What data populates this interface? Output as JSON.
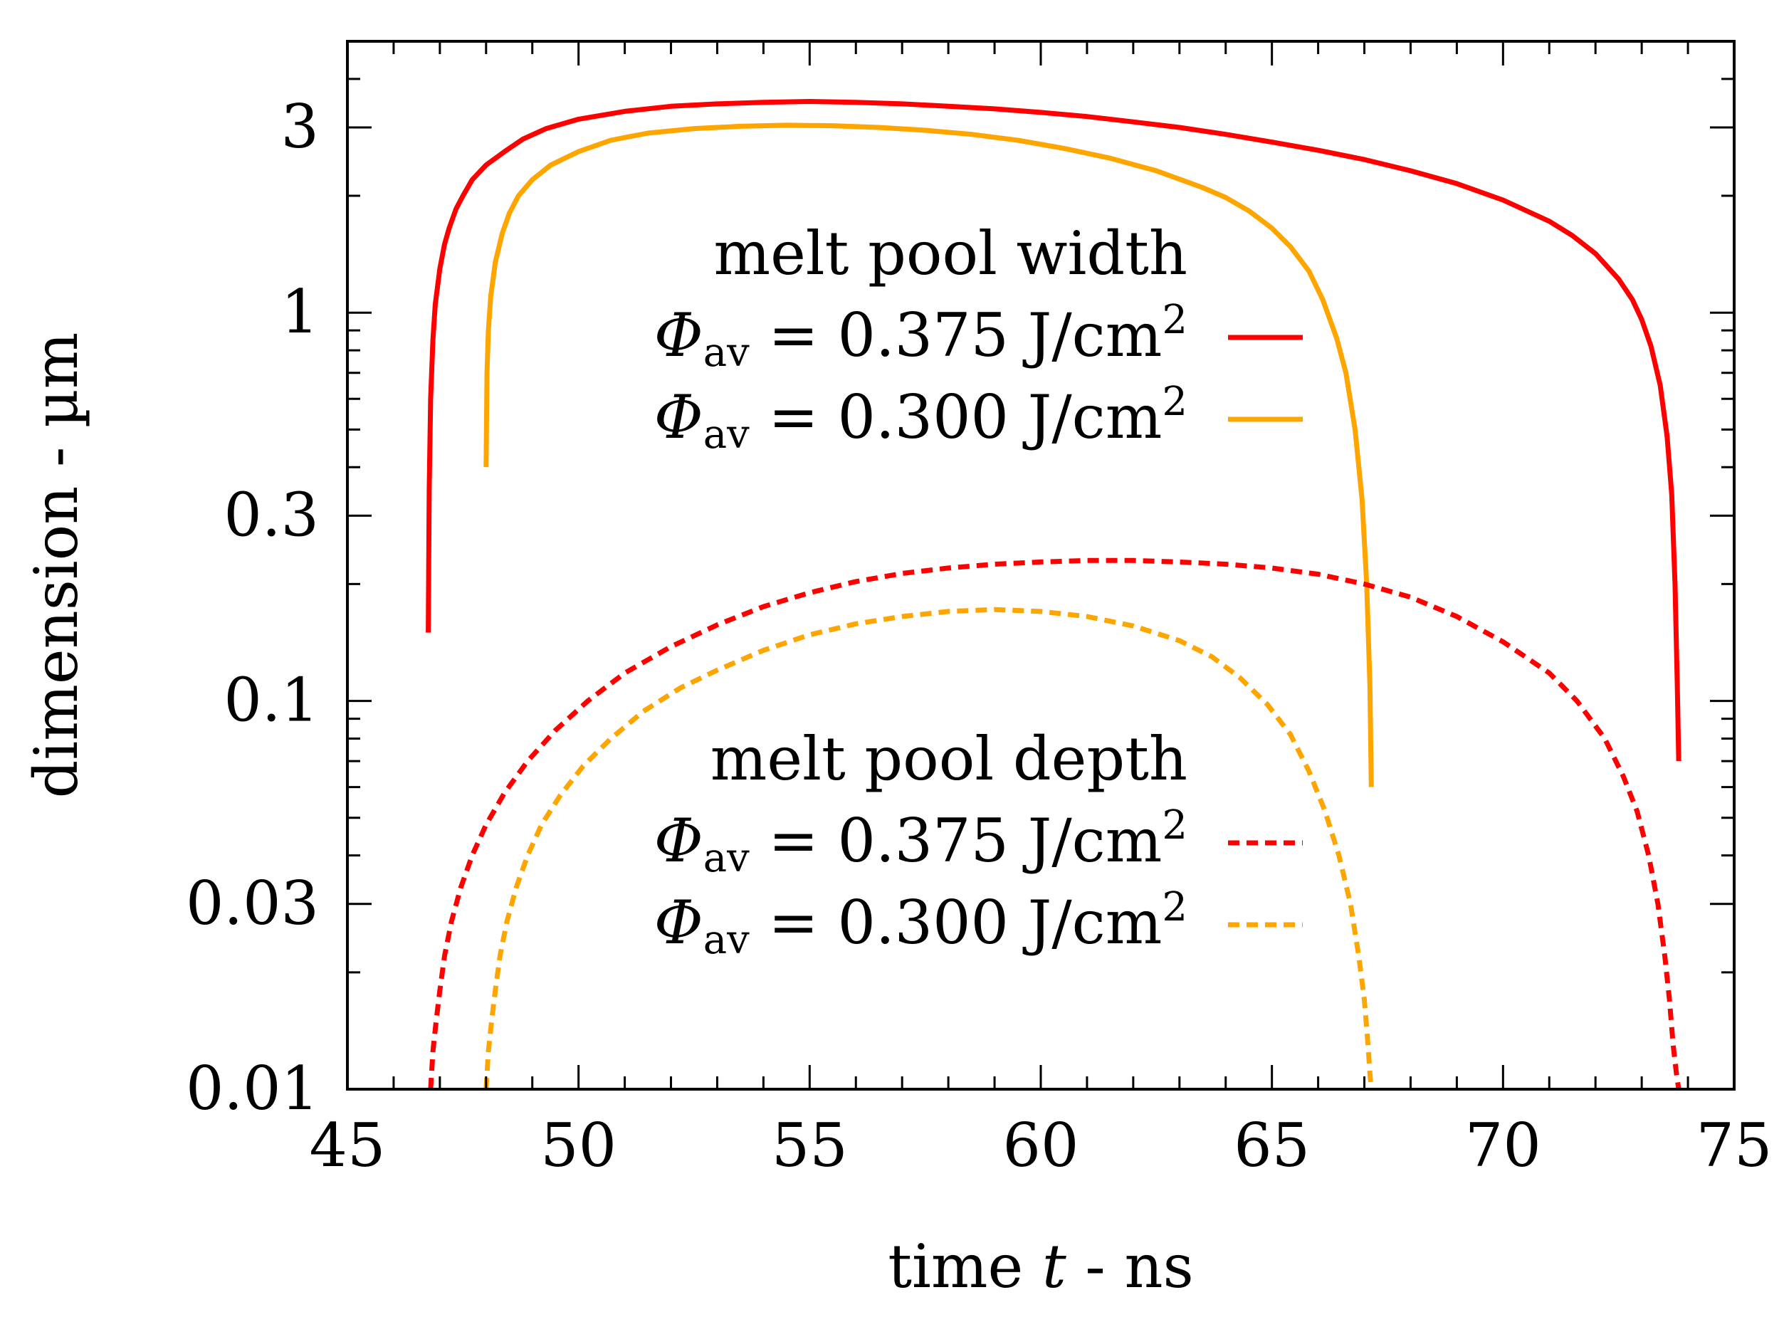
{
  "chart_data": {
    "type": "line",
    "title": "",
    "xlabel": "time t - ns",
    "xlabel_parts": {
      "before": "time ",
      "var": "t",
      "after": " - ns"
    },
    "ylabel": "dimension - µm",
    "xlim": [
      45,
      75
    ],
    "ylim": [
      0.01,
      5
    ],
    "yscale": "log",
    "xticks": [
      45,
      50,
      55,
      60,
      65,
      70,
      75
    ],
    "xtick_labels": [
      "45",
      "50",
      "55",
      "60",
      "65",
      "70",
      "75"
    ],
    "yticks": [
      0.01,
      0.03,
      0.1,
      0.3,
      1,
      3
    ],
    "ytick_labels": [
      "0.01",
      "0.03",
      "0.1",
      "0.3",
      "1",
      "3"
    ],
    "grid": false,
    "legend_groups": [
      {
        "title": "melt pool width",
        "entries": [
          {
            "symbol": "Φ",
            "sub": "av",
            "text": " = 0.375 J/cm",
            "sup": "2",
            "series": 0
          },
          {
            "symbol": "Φ",
            "sub": "av",
            "text": " = 0.300 J/cm",
            "sup": "2",
            "series": 1
          }
        ]
      },
      {
        "title": "melt pool depth",
        "entries": [
          {
            "symbol": "Φ",
            "sub": "av",
            "text": " = 0.375 J/cm",
            "sup": "2",
            "series": 2
          },
          {
            "symbol": "Φ",
            "sub": "av",
            "text": " = 0.300 J/cm",
            "sup": "2",
            "series": 3
          }
        ]
      }
    ],
    "series": [
      {
        "name": "melt pool width, Φav = 0.375 J/cm2",
        "color": "#ff0000",
        "dash": "solid",
        "x": [
          46.75,
          46.77,
          46.8,
          46.85,
          46.9,
          47.0,
          47.1,
          47.2,
          47.35,
          47.5,
          47.7,
          48.0,
          48.4,
          48.8,
          49.3,
          50.0,
          51.0,
          52.0,
          53.0,
          54.0,
          55.0,
          56.0,
          57.0,
          58.0,
          59.0,
          60.0,
          61.0,
          62.0,
          63.0,
          64.0,
          65.0,
          66.0,
          67.0,
          68.0,
          69.0,
          70.0,
          71.0,
          71.5,
          72.0,
          72.5,
          72.8,
          73.0,
          73.2,
          73.4,
          73.55,
          73.65,
          73.72,
          73.77,
          73.8
        ],
        "y": [
          0.15,
          0.35,
          0.6,
          0.85,
          1.05,
          1.3,
          1.5,
          1.65,
          1.85,
          2.0,
          2.2,
          2.4,
          2.6,
          2.8,
          2.98,
          3.15,
          3.3,
          3.4,
          3.45,
          3.48,
          3.5,
          3.48,
          3.45,
          3.4,
          3.35,
          3.28,
          3.2,
          3.1,
          3.0,
          2.88,
          2.75,
          2.62,
          2.48,
          2.32,
          2.15,
          1.95,
          1.72,
          1.58,
          1.42,
          1.22,
          1.08,
          0.96,
          0.82,
          0.65,
          0.48,
          0.34,
          0.2,
          0.11,
          0.07
        ]
      },
      {
        "name": "melt pool width, Φav = 0.300 J/cm2",
        "color": "#ffa500",
        "dash": "solid",
        "x": [
          48.0,
          48.02,
          48.05,
          48.1,
          48.2,
          48.35,
          48.5,
          48.7,
          49.0,
          49.4,
          50.0,
          50.7,
          51.5,
          52.5,
          53.5,
          54.5,
          55.5,
          56.5,
          57.5,
          58.5,
          59.5,
          60.5,
          61.5,
          62.5,
          63.5,
          64.0,
          64.5,
          65.0,
          65.4,
          65.8,
          66.1,
          66.4,
          66.6,
          66.8,
          66.95,
          67.05,
          67.12,
          67.15
        ],
        "y": [
          0.4,
          0.7,
          0.9,
          1.1,
          1.35,
          1.6,
          1.8,
          2.0,
          2.2,
          2.4,
          2.6,
          2.78,
          2.9,
          2.98,
          3.02,
          3.04,
          3.03,
          3.0,
          2.95,
          2.88,
          2.78,
          2.65,
          2.5,
          2.32,
          2.1,
          1.98,
          1.83,
          1.65,
          1.48,
          1.28,
          1.08,
          0.86,
          0.7,
          0.5,
          0.33,
          0.2,
          0.11,
          0.06
        ]
      },
      {
        "name": "melt pool depth, Φav = 0.375 J/cm2",
        "color": "#ff0000",
        "dash": "dashed",
        "x": [
          46.8,
          46.85,
          46.92,
          47.0,
          47.1,
          47.25,
          47.45,
          47.7,
          48.0,
          48.4,
          48.9,
          49.5,
          50.2,
          51.0,
          52.0,
          53.0,
          54.0,
          55.0,
          56.0,
          57.0,
          58.0,
          59.0,
          60.0,
          61.0,
          62.0,
          63.0,
          64.0,
          65.0,
          66.0,
          67.0,
          68.0,
          69.0,
          70.0,
          71.0,
          71.6,
          72.2,
          72.6,
          72.9,
          73.15,
          73.35,
          73.5,
          73.6,
          73.68,
          73.75,
          73.8
        ],
        "y": [
          0.01,
          0.0125,
          0.015,
          0.018,
          0.022,
          0.027,
          0.033,
          0.04,
          0.048,
          0.058,
          0.07,
          0.084,
          0.1,
          0.118,
          0.138,
          0.157,
          0.175,
          0.19,
          0.203,
          0.213,
          0.22,
          0.225,
          0.228,
          0.23,
          0.23,
          0.228,
          0.225,
          0.22,
          0.212,
          0.2,
          0.185,
          0.165,
          0.142,
          0.118,
          0.1,
          0.08,
          0.064,
          0.052,
          0.04,
          0.03,
          0.022,
          0.017,
          0.013,
          0.011,
          0.01
        ]
      },
      {
        "name": "melt pool depth, Φav = 0.300 J/cm2",
        "color": "#ffa500",
        "dash": "dashed",
        "x": [
          48.0,
          48.05,
          48.12,
          48.2,
          48.3,
          48.45,
          48.65,
          48.9,
          49.2,
          49.6,
          50.1,
          50.7,
          51.4,
          52.2,
          53.0,
          54.0,
          55.0,
          56.0,
          57.0,
          58.0,
          59.0,
          60.0,
          61.0,
          62.0,
          63.0,
          63.7,
          64.3,
          64.9,
          65.4,
          65.8,
          66.15,
          66.45,
          66.7,
          66.88,
          67.0,
          67.08,
          67.12,
          67.15
        ],
        "y": [
          0.01,
          0.0125,
          0.015,
          0.018,
          0.022,
          0.027,
          0.033,
          0.04,
          0.048,
          0.057,
          0.068,
          0.08,
          0.094,
          0.108,
          0.12,
          0.135,
          0.148,
          0.158,
          0.165,
          0.17,
          0.172,
          0.17,
          0.165,
          0.156,
          0.143,
          0.13,
          0.115,
          0.098,
          0.082,
          0.066,
          0.052,
          0.04,
          0.03,
          0.022,
          0.017,
          0.013,
          0.011,
          0.01
        ]
      }
    ]
  }
}
